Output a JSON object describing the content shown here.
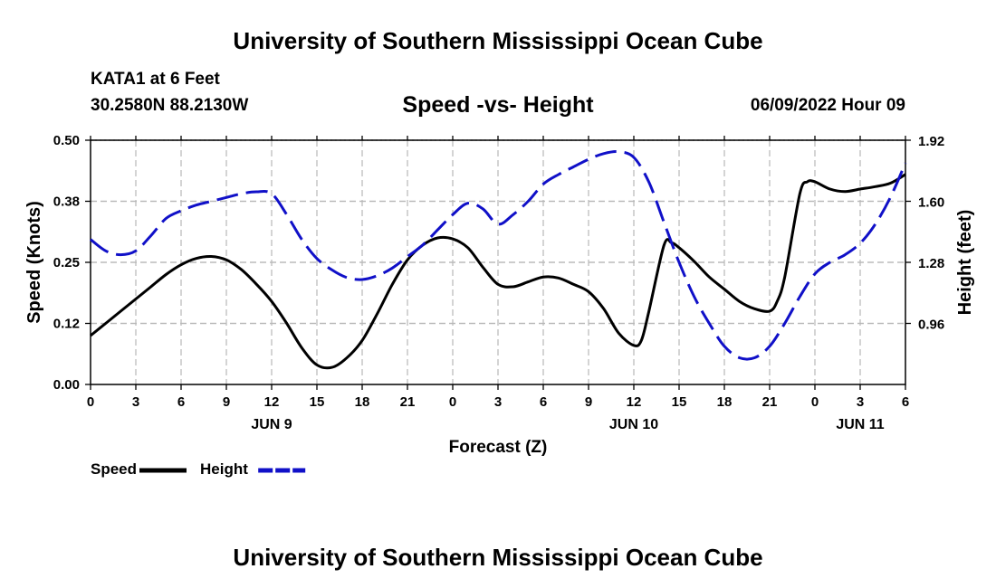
{
  "page": {
    "title": "University of Southern Mississippi Ocean Cube",
    "footer_title": "University of Southern Mississippi Ocean Cube",
    "station": "KATA1 at 6 Feet",
    "coords": "30.2580N  88.2130W",
    "datetime": "06/09/2022 Hour 09"
  },
  "chart_data": {
    "type": "line",
    "title": "Speed -vs- Height",
    "xlabel": "Forecast (Z)",
    "ylabel": "Speed (Knots)",
    "y2label": "Height (feet)",
    "xlim": [
      0,
      54
    ],
    "ylim": [
      0,
      0.5
    ],
    "y2lim": [
      0.64,
      1.92
    ],
    "x_ticks": [
      0,
      3,
      6,
      9,
      12,
      15,
      18,
      21,
      24,
      27,
      30,
      33,
      36,
      39,
      42,
      45,
      48,
      51,
      54
    ],
    "x_tick_labels": [
      "0",
      "3",
      "6",
      "9",
      "12",
      "15",
      "18",
      "21",
      "0",
      "3",
      "6",
      "9",
      "12",
      "15",
      "18",
      "21",
      "0",
      "3",
      "6"
    ],
    "y_ticks": [
      0,
      0.125,
      0.25,
      0.375,
      0.5
    ],
    "y_tick_labels": [
      "0.00",
      "0.12",
      "0.25",
      "0.38",
      "0.50"
    ],
    "y2_ticks": [
      0.96,
      1.28,
      1.6,
      1.92
    ],
    "y2_tick_labels": [
      "0.96",
      "1.28",
      "1.60",
      "1.92"
    ],
    "day_labels": [
      {
        "x": 12,
        "label": "JUN 9"
      },
      {
        "x": 36,
        "label": "JUN 10"
      },
      {
        "x": 51,
        "label": "JUN 11"
      }
    ],
    "legend": [
      {
        "name": "Speed",
        "color": "#000000",
        "dash": "solid"
      },
      {
        "name": "Height",
        "color": "#1010c8",
        "dash": "dashed"
      }
    ],
    "series": [
      {
        "name": "Speed",
        "axis": "left",
        "color": "#000000",
        "x": [
          0,
          1,
          2,
          3,
          4,
          5,
          6,
          7,
          8,
          9,
          10,
          11,
          12,
          13,
          14,
          15,
          16,
          17,
          18,
          19,
          20,
          21,
          22,
          23,
          24,
          25,
          26,
          27,
          28,
          29,
          30,
          31,
          32,
          33,
          34,
          35,
          36,
          36.5,
          37,
          38,
          38.5,
          39,
          40,
          41,
          42,
          43,
          44,
          45,
          45.5,
          46,
          47,
          47.5,
          48,
          49,
          50,
          51,
          52,
          53,
          54
        ],
        "values": [
          0.1,
          0.125,
          0.15,
          0.175,
          0.2,
          0.225,
          0.245,
          0.258,
          0.262,
          0.255,
          0.235,
          0.205,
          0.17,
          0.125,
          0.075,
          0.04,
          0.035,
          0.055,
          0.09,
          0.145,
          0.205,
          0.255,
          0.285,
          0.3,
          0.298,
          0.28,
          0.24,
          0.205,
          0.2,
          0.21,
          0.22,
          0.218,
          0.205,
          0.19,
          0.155,
          0.105,
          0.08,
          0.09,
          0.15,
          0.285,
          0.29,
          0.28,
          0.252,
          0.22,
          0.195,
          0.17,
          0.155,
          0.15,
          0.17,
          0.22,
          0.39,
          0.415,
          0.415,
          0.4,
          0.395,
          0.4,
          0.405,
          0.412,
          0.43
        ]
      },
      {
        "name": "Height",
        "axis": "right",
        "color": "#1010c8",
        "x": [
          0,
          1,
          2,
          3,
          4,
          5,
          6,
          7,
          8,
          9,
          10,
          11,
          12,
          13,
          14,
          15,
          16,
          17,
          18,
          19,
          20,
          21,
          22,
          23,
          24,
          25,
          26,
          27,
          28,
          29,
          30,
          31,
          32,
          33,
          34,
          35,
          36,
          37,
          38,
          39,
          40,
          41,
          42,
          43,
          44,
          45,
          46,
          47,
          48,
          49,
          50,
          51,
          52,
          53,
          54
        ],
        "values": [
          1.4,
          1.34,
          1.32,
          1.34,
          1.42,
          1.51,
          1.55,
          1.58,
          1.6,
          1.62,
          1.64,
          1.65,
          1.64,
          1.53,
          1.4,
          1.3,
          1.24,
          1.2,
          1.19,
          1.21,
          1.25,
          1.31,
          1.37,
          1.45,
          1.53,
          1.59,
          1.56,
          1.48,
          1.53,
          1.6,
          1.69,
          1.74,
          1.78,
          1.82,
          1.85,
          1.86,
          1.83,
          1.7,
          1.49,
          1.28,
          1.1,
          0.96,
          0.84,
          0.78,
          0.78,
          0.84,
          0.96,
          1.1,
          1.22,
          1.28,
          1.32,
          1.38,
          1.48,
          1.62,
          1.8
        ]
      }
    ]
  }
}
